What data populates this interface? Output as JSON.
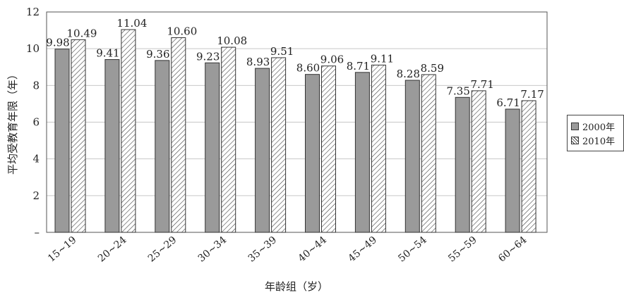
{
  "chart_data": {
    "type": "bar",
    "categories": [
      "15~19",
      "20~24",
      "25~29",
      "30~34",
      "35~39",
      "40~44",
      "45~49",
      "50~54",
      "55~59",
      "60~64"
    ],
    "series": [
      {
        "name": "2000年",
        "values": [
          9.98,
          9.41,
          9.36,
          9.23,
          8.93,
          8.6,
          8.71,
          8.28,
          7.35,
          6.71
        ],
        "labels": [
          "9.98",
          "9.41",
          "9.36",
          "9.23",
          "8.93",
          "8.60",
          "8.71",
          "8.28",
          "7.35",
          "6.71"
        ],
        "color": "#9a9a9a",
        "fill": "solid"
      },
      {
        "name": "2010年",
        "values": [
          10.49,
          11.04,
          10.6,
          10.08,
          9.51,
          9.06,
          9.11,
          8.59,
          7.71,
          7.17
        ],
        "labels": [
          "10.49",
          "11.04",
          "10.60",
          "10.08",
          "9.51",
          "9.06",
          "9.11",
          "8.59",
          "7.71",
          "7.17"
        ],
        "color": "#ffffff",
        "fill": "hatched"
      }
    ],
    "title": "",
    "xlabel": "年龄组（岁）",
    "ylabel": "平均受教育年限（年）",
    "ylim": [
      0,
      12
    ],
    "yticks": [
      "–",
      "2",
      "4",
      "6",
      "8",
      "10",
      "12"
    ],
    "grid": true,
    "legend_position": "right"
  }
}
